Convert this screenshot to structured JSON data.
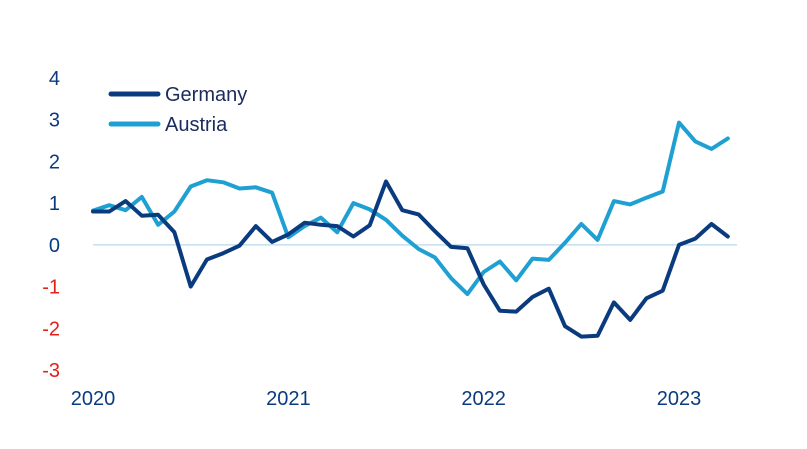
{
  "chart_data": {
    "type": "line",
    "title": "",
    "xlabel": "",
    "ylabel": "",
    "ylim": [
      -3,
      4
    ],
    "yticks": [
      4,
      3,
      2,
      1,
      0,
      -1,
      -2,
      -3
    ],
    "xticks": [
      "2020",
      "2021",
      "2022",
      "2023"
    ],
    "xtick_positions": [
      2020,
      2021,
      2022,
      2023
    ],
    "zero_line": true,
    "grid": false,
    "legend_position": "top-left",
    "colors": {
      "Germany": "#0b3b7f",
      "Austria": "#1fa0d2",
      "positive_tick": "#0b3b7f",
      "negative_tick": "#e32119",
      "zero_line": "#b6d9ee"
    },
    "series": [
      {
        "name": "Germany",
        "x_start": "2020-01",
        "frequency": "monthly",
        "values": [
          0.8,
          0.8,
          1.05,
          0.7,
          0.72,
          0.3,
          -1.0,
          -0.35,
          -0.2,
          -0.02,
          0.45,
          0.07,
          0.25,
          0.53,
          0.48,
          0.45,
          0.2,
          0.47,
          1.52,
          0.83,
          0.73,
          0.33,
          -0.05,
          -0.08,
          -0.95,
          -1.58,
          -1.6,
          -1.25,
          -1.05,
          -1.95,
          -2.2,
          -2.18,
          -1.38,
          -1.8,
          -1.28,
          -1.1,
          0.0,
          0.15,
          0.5,
          0.2
        ]
      },
      {
        "name": "Austria",
        "x_start": "2020-01",
        "frequency": "monthly",
        "values": [
          0.82,
          0.95,
          0.83,
          1.15,
          0.48,
          0.8,
          1.4,
          1.55,
          1.5,
          1.35,
          1.38,
          1.25,
          0.18,
          0.45,
          0.65,
          0.3,
          1.0,
          0.85,
          0.6,
          0.22,
          -0.1,
          -0.3,
          -0.8,
          -1.18,
          -0.65,
          -0.4,
          -0.85,
          -0.33,
          -0.36,
          0.05,
          0.5,
          0.12,
          1.05,
          0.97,
          1.13,
          1.28,
          2.93,
          2.48,
          2.3,
          2.55
        ]
      }
    ]
  }
}
